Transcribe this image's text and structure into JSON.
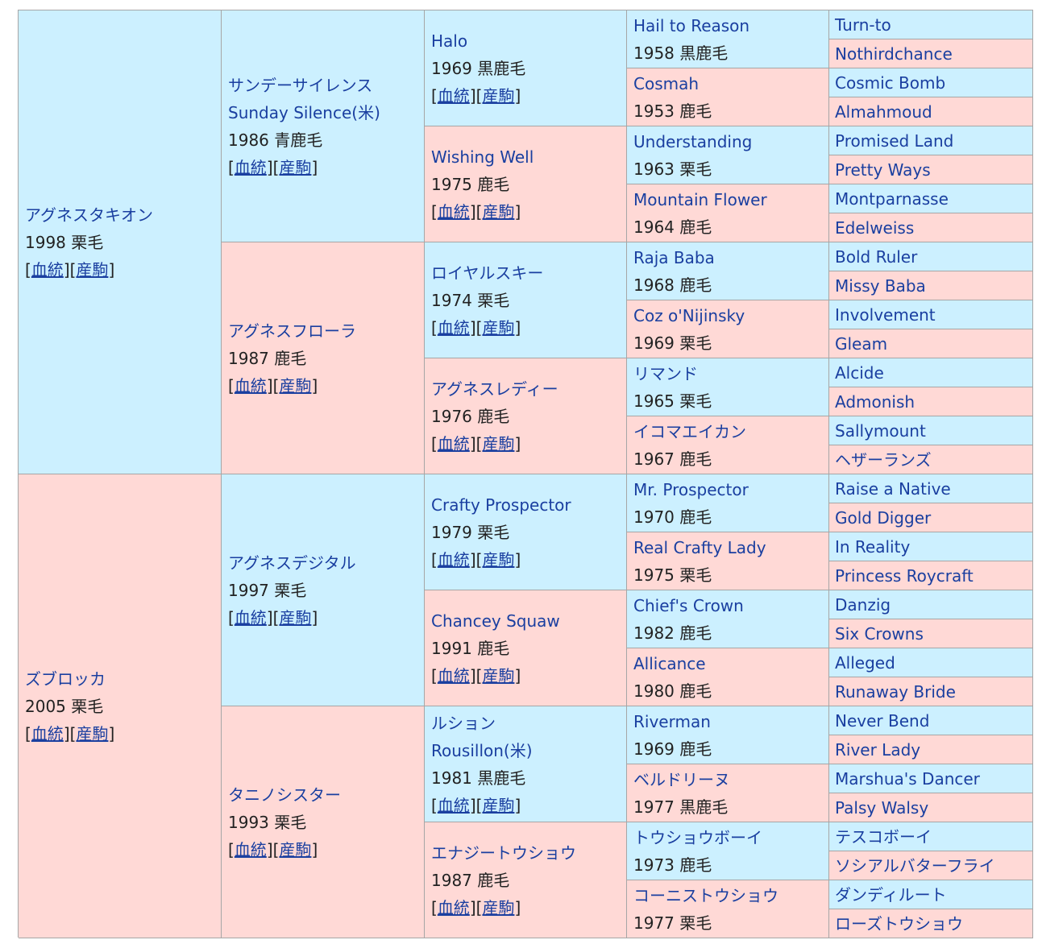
{
  "link_labels": {
    "blood": "血統",
    "progeny": "産駒",
    "open": "[",
    "close": "]"
  },
  "colors": {
    "male_bg": "#ccf0ff",
    "female_bg": "#ffd9d6",
    "link": "#1a3fa0",
    "border": "#a6a6a6"
  },
  "gen1": [
    {
      "name": "アグネスタキオン",
      "year_color": "1998 栗毛",
      "sex": "m"
    },
    {
      "name": "ズブロッカ",
      "year_color": "2005 栗毛",
      "sex": "f"
    }
  ],
  "gen2": [
    {
      "name": "サンデーサイレンス",
      "alt_name": "Sunday Silence(米)",
      "year_color": "1986 青鹿毛",
      "sex": "m"
    },
    {
      "name": "アグネスフローラ",
      "year_color": "1987 鹿毛",
      "sex": "f"
    },
    {
      "name": "アグネスデジタル",
      "year_color": "1997 栗毛",
      "sex": "m"
    },
    {
      "name": "タニノシスター",
      "year_color": "1993 栗毛",
      "sex": "f"
    }
  ],
  "gen3": [
    {
      "name": "Halo",
      "year_color": "1969 黒鹿毛",
      "sex": "m"
    },
    {
      "name": "Wishing Well",
      "year_color": "1975 鹿毛",
      "sex": "f"
    },
    {
      "name": "ロイヤルスキー",
      "year_color": "1974 栗毛",
      "sex": "m"
    },
    {
      "name": "アグネスレディー",
      "year_color": "1976 鹿毛",
      "sex": "f"
    },
    {
      "name": "Crafty Prospector",
      "year_color": "1979 栗毛",
      "sex": "m"
    },
    {
      "name": "Chancey Squaw",
      "year_color": "1991 鹿毛",
      "sex": "f"
    },
    {
      "name": "ルション",
      "alt_name": "Rousillon(米)",
      "year_color": "1981 黒鹿毛",
      "sex": "m"
    },
    {
      "name": "エナジートウショウ",
      "year_color": "1987 鹿毛",
      "sex": "f"
    }
  ],
  "gen4": [
    {
      "name": "Hail to Reason",
      "year_color": "1958 黒鹿毛",
      "sex": "m"
    },
    {
      "name": "Cosmah",
      "year_color": "1953 鹿毛",
      "sex": "f"
    },
    {
      "name": "Understanding",
      "year_color": "1963 栗毛",
      "sex": "m"
    },
    {
      "name": "Mountain Flower",
      "year_color": "1964 鹿毛",
      "sex": "f"
    },
    {
      "name": "Raja Baba",
      "year_color": "1968 鹿毛",
      "sex": "m"
    },
    {
      "name": "Coz o'Nijinsky",
      "year_color": "1969 栗毛",
      "sex": "f"
    },
    {
      "name": "リマンド",
      "year_color": "1965 栗毛",
      "sex": "m"
    },
    {
      "name": "イコマエイカン",
      "year_color": "1967 鹿毛",
      "sex": "f"
    },
    {
      "name": "Mr. Prospector",
      "year_color": "1970 鹿毛",
      "sex": "m"
    },
    {
      "name": "Real Crafty Lady",
      "year_color": "1975 栗毛",
      "sex": "f"
    },
    {
      "name": "Chief's Crown",
      "year_color": "1982 鹿毛",
      "sex": "m"
    },
    {
      "name": "Allicance",
      "year_color": "1980 鹿毛",
      "sex": "f"
    },
    {
      "name": "Riverman",
      "year_color": "1969 鹿毛",
      "sex": "m"
    },
    {
      "name": "ベルドリーヌ",
      "year_color": "1977 黒鹿毛",
      "sex": "f"
    },
    {
      "name": "トウショウボーイ",
      "year_color": "1973 鹿毛",
      "sex": "m"
    },
    {
      "name": "コーニストウショウ",
      "year_color": "1977 栗毛",
      "sex": "f"
    }
  ],
  "gen5": [
    {
      "name": "Turn-to",
      "sex": "m"
    },
    {
      "name": "Nothirdchance",
      "sex": "f"
    },
    {
      "name": "Cosmic Bomb",
      "sex": "m"
    },
    {
      "name": "Almahmoud",
      "sex": "f"
    },
    {
      "name": "Promised Land",
      "sex": "m"
    },
    {
      "name": "Pretty Ways",
      "sex": "f"
    },
    {
      "name": "Montparnasse",
      "sex": "m"
    },
    {
      "name": "Edelweiss",
      "sex": "f"
    },
    {
      "name": "Bold Ruler",
      "sex": "m"
    },
    {
      "name": "Missy Baba",
      "sex": "f"
    },
    {
      "name": "Involvement",
      "sex": "m"
    },
    {
      "name": "Gleam",
      "sex": "f"
    },
    {
      "name": "Alcide",
      "sex": "m"
    },
    {
      "name": "Admonish",
      "sex": "f"
    },
    {
      "name": "Sallymount",
      "sex": "m"
    },
    {
      "name": "ヘザーランズ",
      "sex": "f"
    },
    {
      "name": "Raise a Native",
      "sex": "m"
    },
    {
      "name": "Gold Digger",
      "sex": "f"
    },
    {
      "name": "In Reality",
      "sex": "m"
    },
    {
      "name": "Princess Roycraft",
      "sex": "f"
    },
    {
      "name": "Danzig",
      "sex": "m"
    },
    {
      "name": "Six Crowns",
      "sex": "f"
    },
    {
      "name": "Alleged",
      "sex": "m"
    },
    {
      "name": "Runaway Bride",
      "sex": "f"
    },
    {
      "name": "Never Bend",
      "sex": "m"
    },
    {
      "name": "River Lady",
      "sex": "f"
    },
    {
      "name": "Marshua's Dancer",
      "sex": "m"
    },
    {
      "name": "Palsy Walsy",
      "sex": "f"
    },
    {
      "name": "テスコボーイ",
      "sex": "m"
    },
    {
      "name": "ソシアルバターフライ",
      "sex": "f"
    },
    {
      "name": "ダンディルート",
      "sex": "m"
    },
    {
      "name": "ローズトウショウ",
      "sex": "f"
    }
  ]
}
